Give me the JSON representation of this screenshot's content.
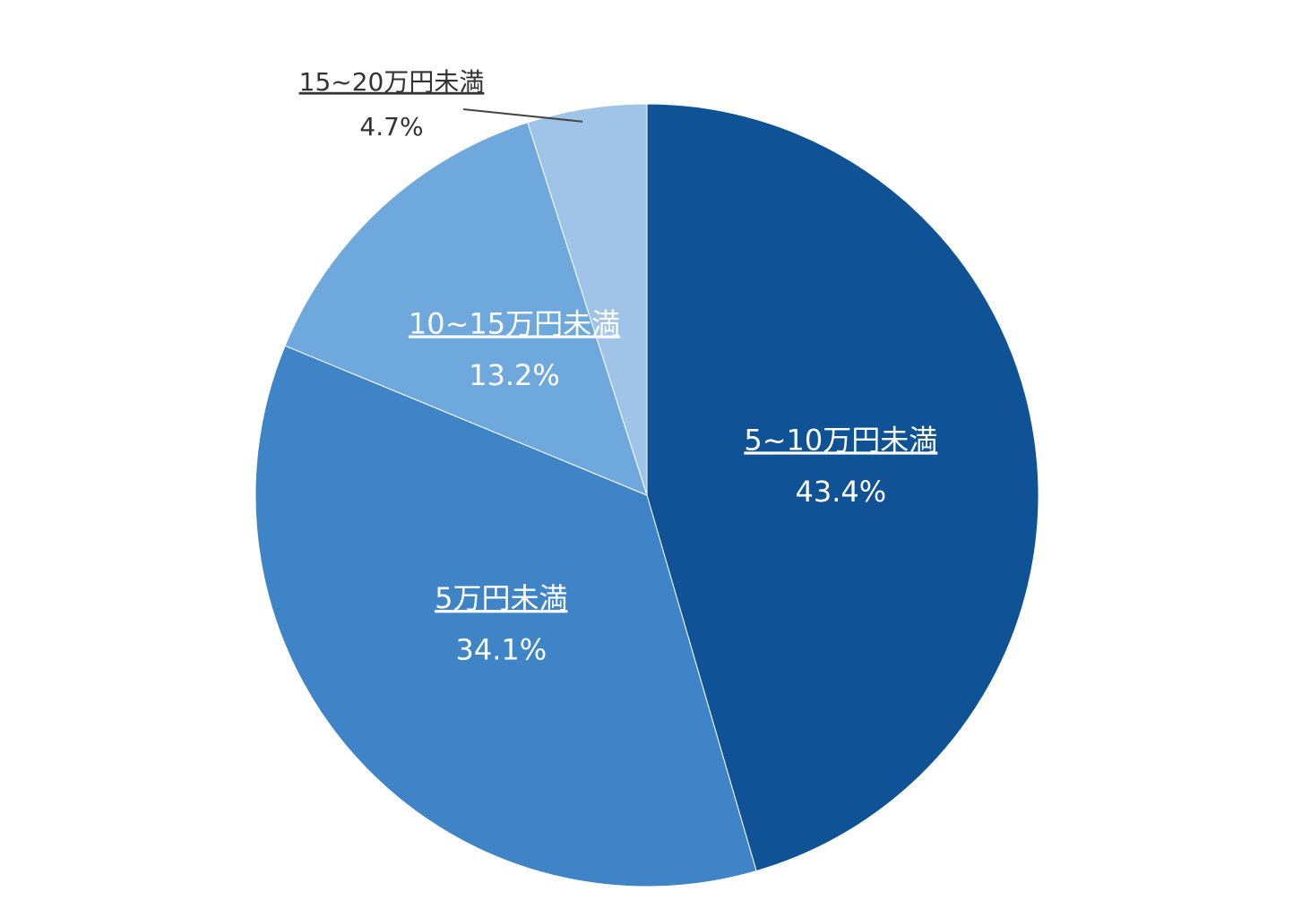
{
  "chart_data": {
    "type": "pie",
    "categories": [
      "5~10万円未満",
      "5万円未満",
      "10~15万円未満",
      "15~20万円未満"
    ],
    "values": [
      43.4,
      34.1,
      13.2,
      4.7
    ],
    "value_labels": [
      "43.4%",
      "34.1%",
      "13.2%",
      "4.7%"
    ],
    "colors": [
      "#0f5296",
      "#3f84c6",
      "#6fa8dc",
      "#a0c4e8"
    ]
  }
}
